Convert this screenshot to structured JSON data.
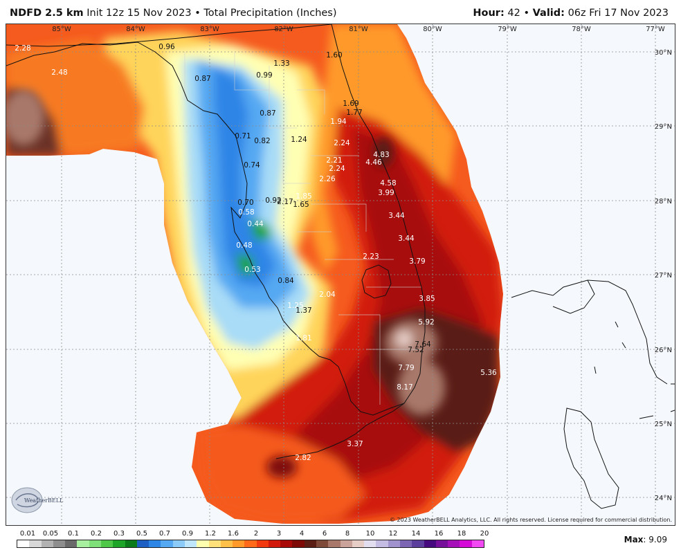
{
  "header": {
    "model": "NDFD 2.5 km",
    "init": "Init 12z 15 Nov 2023",
    "separator": "•",
    "product": "Total Precipitation (Inches)",
    "hour_label": "Hour:",
    "hour_value": "42",
    "valid_label": "Valid:",
    "valid_value": "06z Fri 17 Nov 2023"
  },
  "map": {
    "lon_labels": [
      "85°W",
      "84°W",
      "83°W",
      "82°W",
      "81°W",
      "80°W",
      "79°W",
      "78°W",
      "77°W"
    ],
    "lat_labels": [
      "30°N",
      "29°N",
      "28°N",
      "27°N",
      "26°N",
      "25°N",
      "24°N"
    ],
    "values": [
      {
        "text": "2.28",
        "tone": "light"
      },
      {
        "text": "2.48",
        "tone": "light"
      },
      {
        "text": "0.96",
        "tone": "dark"
      },
      {
        "text": "1.60",
        "tone": "dark"
      },
      {
        "text": "1.33",
        "tone": "dark"
      },
      {
        "text": "0.87",
        "tone": "dark"
      },
      {
        "text": "0.99",
        "tone": "dark"
      },
      {
        "text": "1.69",
        "tone": "dark"
      },
      {
        "text": "1.77",
        "tone": "dark"
      },
      {
        "text": "0.87",
        "tone": "dark"
      },
      {
        "text": "1.94",
        "tone": "light"
      },
      {
        "text": "0.71",
        "tone": "dark"
      },
      {
        "text": "0.82",
        "tone": "dark"
      },
      {
        "text": "1.24",
        "tone": "dark"
      },
      {
        "text": "2.24",
        "tone": "light"
      },
      {
        "text": "4.83",
        "tone": "light"
      },
      {
        "text": "2.21",
        "tone": "light"
      },
      {
        "text": "4.46",
        "tone": "light"
      },
      {
        "text": "0.74",
        "tone": "dark"
      },
      {
        "text": "2.24",
        "tone": "light"
      },
      {
        "text": "2.26",
        "tone": "light"
      },
      {
        "text": "4.58",
        "tone": "light"
      },
      {
        "text": "3.99",
        "tone": "light"
      },
      {
        "text": "1.85",
        "tone": "light"
      },
      {
        "text": "0.70",
        "tone": "dark"
      },
      {
        "text": "0.92",
        "tone": "dark"
      },
      {
        "text": "2.17",
        "tone": "dark"
      },
      {
        "text": "1.65",
        "tone": "dark"
      },
      {
        "text": "0.58",
        "tone": "light"
      },
      {
        "text": "3.44",
        "tone": "light"
      },
      {
        "text": "0.44",
        "tone": "light"
      },
      {
        "text": "3.44",
        "tone": "light"
      },
      {
        "text": "0.48",
        "tone": "light"
      },
      {
        "text": "2.23",
        "tone": "light"
      },
      {
        "text": "3.79",
        "tone": "light"
      },
      {
        "text": "0.53",
        "tone": "light"
      },
      {
        "text": "0.84",
        "tone": "dark"
      },
      {
        "text": "2.04",
        "tone": "light"
      },
      {
        "text": "3.85",
        "tone": "light"
      },
      {
        "text": "1.25",
        "tone": "light"
      },
      {
        "text": "1.37",
        "tone": "dark"
      },
      {
        "text": "5.92",
        "tone": "light"
      },
      {
        "text": "1.81",
        "tone": "light"
      },
      {
        "text": "7.64",
        "tone": "dark"
      },
      {
        "text": "7.52",
        "tone": "dark"
      },
      {
        "text": "7.79",
        "tone": "light"
      },
      {
        "text": "5.36",
        "tone": "light"
      },
      {
        "text": "8.17",
        "tone": "light"
      },
      {
        "text": "3.37",
        "tone": "light"
      },
      {
        "text": "2.82",
        "tone": "light"
      }
    ],
    "copyright": "© 2023 WeatherBELL Analytics, LLC. All rights reserved. License required for commercial distribution.",
    "logo_text": "WeatherBELL"
  },
  "legend": {
    "labels": [
      "0.01",
      "0.05",
      "0.1",
      "0.2",
      "0.3",
      "0.5",
      "0.7",
      "0.9",
      "1.2",
      "1.6",
      "2",
      "3",
      "4",
      "6",
      "8",
      "10",
      "12",
      "14",
      "16",
      "18",
      "20"
    ],
    "colors": [
      "#ffffff",
      "#d8d8d8",
      "#b2b2b2",
      "#8e8e8e",
      "#6a6a6a",
      "#a8f0a0",
      "#7fe07a",
      "#4fc84a",
      "#1fa42a",
      "#0a7a1a",
      "#1e5fc4",
      "#2d85e6",
      "#55a8f2",
      "#8ccbf7",
      "#bfe6fb",
      "#ffffb0",
      "#ffe07a",
      "#ffc04a",
      "#ff9a2a",
      "#ff6a1a",
      "#f23a10",
      "#d21a0c",
      "#a80a08",
      "#7e0a08",
      "#5a1e14",
      "#7e4a3a",
      "#a8786a",
      "#caa49a",
      "#e6cdc6",
      "#e2def0",
      "#c4bce2",
      "#a092cc",
      "#7c66b4",
      "#5c3e9c",
      "#460a7e",
      "#76109a",
      "#a610b8",
      "#d60ad6",
      "#f24af2"
    ],
    "max_label": "Max",
    "max_value": "9.09"
  }
}
